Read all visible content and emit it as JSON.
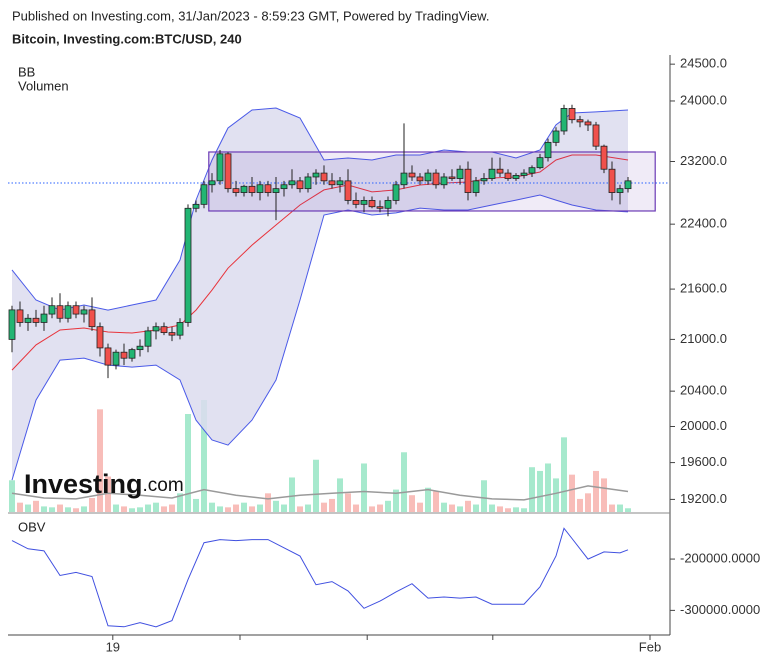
{
  "header": {
    "published": "Published on Investing.com, 31/Jan/2023 - 8:59:23 GMT, Powered by TradingView.",
    "symbol": "Bitcoin, Investing.com:BTC/USD, 240"
  },
  "watermark": {
    "brand": "Investing",
    "suffix": ".com"
  },
  "chart_data": [
    {
      "type": "candlestick",
      "legend": [
        "BB",
        "Volumen"
      ],
      "log_scale": true,
      "xlim": [
        -0.5,
        82.25
      ],
      "ylim": [
        19065,
        24626
      ],
      "yticks": [
        {
          "value": 24500,
          "label": "24500.0"
        },
        {
          "value": 24000,
          "label": "24000.0"
        },
        {
          "value": 23200,
          "label": "23200.0"
        },
        {
          "value": 22400,
          "label": "22400.0"
        },
        {
          "value": 21600,
          "label": "21600.0"
        },
        {
          "value": 21000,
          "label": "21000.0"
        },
        {
          "value": 20400,
          "label": "20400.0"
        },
        {
          "value": 20000,
          "label": "20000.0"
        },
        {
          "value": 19600,
          "label": "19600.0"
        },
        {
          "value": 19200,
          "label": "19200.0"
        }
      ],
      "up_color": "#22b573",
      "down_color": "#f0504c",
      "candles": {
        "open": [
          21000,
          21350,
          21200,
          21250,
          21200,
          21300,
          21400,
          21250,
          21400,
          21300,
          21350,
          21150,
          20900,
          20700,
          20850,
          20780,
          20880,
          20920,
          21100,
          21150,
          21080,
          21050,
          21200,
          22600,
          22650,
          22900,
          22950,
          23300,
          22850,
          22800,
          22880,
          22800,
          22900,
          22800,
          22850,
          22900,
          22950,
          22850,
          23000,
          23050,
          22950,
          22900,
          22950,
          22700,
          22650,
          22700,
          22620,
          22600,
          22700,
          22900,
          23050,
          23000,
          22950,
          23050,
          22900,
          23000,
          22980,
          23100,
          22800,
          22950,
          22980,
          23100,
          23050,
          22980,
          23020,
          23050,
          23120,
          23250,
          23450,
          23600,
          23900,
          23750,
          23720,
          23680,
          23400,
          23100,
          22800,
          22850
        ],
        "high": [
          21400,
          21450,
          21300,
          21350,
          21400,
          21500,
          21550,
          21450,
          21450,
          21400,
          21500,
          21200,
          20950,
          20880,
          20950,
          20900,
          21000,
          21150,
          21200,
          21200,
          21150,
          21250,
          22650,
          22700,
          22950,
          23050,
          23350,
          23320,
          22950,
          22900,
          23000,
          22950,
          22950,
          23000,
          22950,
          23100,
          23000,
          23050,
          23100,
          23150,
          23050,
          23000,
          23100,
          22800,
          22750,
          22750,
          22700,
          22750,
          22950,
          23700,
          23150,
          23050,
          23100,
          23100,
          23050,
          23100,
          23150,
          23200,
          23000,
          23050,
          23250,
          23250,
          23100,
          23050,
          23100,
          23150,
          23300,
          23500,
          23650,
          23950,
          23950,
          23800,
          23750,
          23720,
          23420,
          23200,
          22900,
          23000
        ],
        "low": [
          20850,
          21150,
          21100,
          21150,
          21100,
          21250,
          21200,
          21200,
          21250,
          21200,
          21100,
          20800,
          20550,
          20650,
          20700,
          20740,
          20800,
          20850,
          21000,
          21050,
          20980,
          21000,
          21150,
          22550,
          22600,
          22800,
          22900,
          22800,
          22750,
          22750,
          22750,
          22700,
          22750,
          22450,
          22750,
          22850,
          22800,
          22800,
          22900,
          22900,
          22850,
          22800,
          22650,
          22600,
          22550,
          22600,
          22550,
          22500,
          22650,
          22850,
          22950,
          22900,
          22900,
          22850,
          22850,
          22950,
          22900,
          22700,
          22750,
          22900,
          22950,
          23000,
          22950,
          22950,
          22980,
          23000,
          23100,
          23200,
          23400,
          23550,
          23700,
          23650,
          23600,
          23350,
          23050,
          22700,
          22650,
          22800
        ],
        "close": [
          21350,
          21200,
          21250,
          21200,
          21300,
          21400,
          21250,
          21400,
          21300,
          21350,
          21150,
          20900,
          20700,
          20850,
          20780,
          20880,
          20920,
          21100,
          21150,
          21080,
          21050,
          21200,
          22600,
          22650,
          22900,
          22950,
          23300,
          22850,
          22800,
          22880,
          22800,
          22900,
          22800,
          22850,
          22900,
          22950,
          22850,
          23000,
          23050,
          22950,
          22900,
          22950,
          22700,
          22650,
          22700,
          22620,
          22600,
          22700,
          22900,
          23050,
          23000,
          22950,
          23050,
          22900,
          23000,
          22980,
          23100,
          22800,
          22950,
          22980,
          23100,
          23050,
          22980,
          23020,
          23050,
          23120,
          23250,
          23450,
          23600,
          23900,
          23750,
          23720,
          23680,
          23400,
          23100,
          22800,
          22850,
          22950
        ]
      },
      "bb": {
        "fill": "#dcdcef",
        "upper_color": "#4a5ae8",
        "middle_color": "#e8333b",
        "x": [
          0,
          3,
          6,
          9,
          12,
          15,
          18,
          21,
          23,
          25,
          27,
          30,
          33,
          36,
          39,
          42,
          45,
          48,
          51,
          54,
          57,
          60,
          63,
          66,
          68,
          70,
          73,
          77
        ],
        "upper": [
          21833,
          21468,
          21348,
          21408,
          21348,
          21408,
          21468,
          21955,
          22704,
          23220,
          23640,
          23879,
          23906,
          23772,
          23220,
          23246,
          23220,
          23285,
          23285,
          23350,
          23324,
          23324,
          23246,
          23350,
          23680,
          23839,
          23853,
          23879
        ],
        "middle": [
          20642,
          20935,
          21111,
          21134,
          21087,
          21075,
          21111,
          21170,
          21348,
          21588,
          21854,
          22139,
          22390,
          22642,
          22834,
          22897,
          22808,
          22834,
          22897,
          22922,
          22935,
          22987,
          22999,
          23064,
          23220,
          23285,
          23285,
          23220
        ],
        "lower": [
          19409,
          20298,
          20758,
          20781,
          20700,
          20677,
          20700,
          20528,
          20072,
          19849,
          19793,
          20072,
          20528,
          21468,
          22515,
          22579,
          22515,
          22542,
          22603,
          22579,
          22579,
          22642,
          22704,
          22769,
          22704,
          22642,
          22579,
          22554
        ]
      },
      "volume": {
        "ylim": [
          0,
          120
        ],
        "up_color": "#a6e9cd",
        "down_color": "#f8bdb9",
        "values": [
          34,
          10,
          8,
          12,
          6,
          5,
          8,
          5,
          4,
          6,
          15,
          110,
          38,
          8,
          6,
          4,
          5,
          8,
          10,
          6,
          8,
          20,
          105,
          14,
          120,
          10,
          6,
          5,
          8,
          10,
          6,
          8,
          20,
          12,
          8,
          37,
          6,
          8,
          56,
          10,
          14,
          36,
          20,
          8,
          52,
          6,
          8,
          12,
          24,
          64,
          18,
          10,
          26,
          22,
          10,
          8,
          6,
          12,
          8,
          34,
          8,
          6,
          4,
          5,
          4,
          48,
          44,
          52,
          36,
          80,
          40,
          14,
          20,
          44,
          36,
          8,
          8,
          4
        ]
      },
      "volume_ma": {
        "color": "#9a9a9a",
        "x": [
          0,
          4,
          8,
          12,
          16,
          20,
          24,
          28,
          32,
          36,
          40,
          44,
          48,
          52,
          56,
          60,
          64,
          68,
          72,
          77
        ],
        "values": [
          20,
          15,
          14,
          20,
          18,
          15,
          24,
          18,
          14,
          18,
          20,
          22,
          20,
          24,
          18,
          14,
          13,
          20,
          28,
          22
        ]
      },
      "rectangle": {
        "x": [
          24.6,
          80.4
        ],
        "top": 23324,
        "bottom": 22566,
        "color": "#6b3ab5"
      },
      "price_line": {
        "value": 22922,
        "color": "#2962ff"
      }
    },
    {
      "type": "line",
      "title": "OBV",
      "color": "#4050e0",
      "xlim": [
        -0.5,
        82.25
      ],
      "ylim": [
        -348000,
        -118000
      ],
      "yticks": [
        {
          "value": -200000,
          "label": "-200000.0000"
        },
        {
          "value": -300000,
          "label": "-300000.0000"
        }
      ],
      "xticks": [
        {
          "value": 12.6,
          "label": "19"
        },
        {
          "value": 28.5,
          "label": null
        },
        {
          "value": 44.4,
          "label": null
        },
        {
          "value": 60.1,
          "label": null
        },
        {
          "value": 79.75,
          "label": "Feb"
        }
      ],
      "x": [
        0,
        2,
        4,
        6,
        8,
        10,
        12,
        14,
        16,
        18,
        20,
        22,
        24,
        26,
        28,
        30,
        32,
        34,
        36,
        38,
        40,
        42,
        44,
        46,
        48,
        50,
        52,
        54,
        56,
        58,
        60,
        62,
        64,
        66,
        68,
        69,
        70,
        72,
        74,
        76,
        77
      ],
      "values": [
        -164000,
        -180000,
        -184000,
        -232000,
        -226000,
        -234000,
        -330000,
        -332000,
        -324000,
        -332000,
        -320000,
        -240000,
        -168000,
        -162000,
        -164000,
        -162000,
        -162000,
        -178000,
        -194000,
        -250000,
        -244000,
        -262000,
        -296000,
        -282000,
        -264000,
        -248000,
        -276000,
        -274000,
        -276000,
        -274000,
        -288000,
        -288000,
        -288000,
        -254000,
        -194000,
        -140000,
        -160000,
        -200000,
        -186000,
        -188000,
        -182000
      ]
    }
  ]
}
